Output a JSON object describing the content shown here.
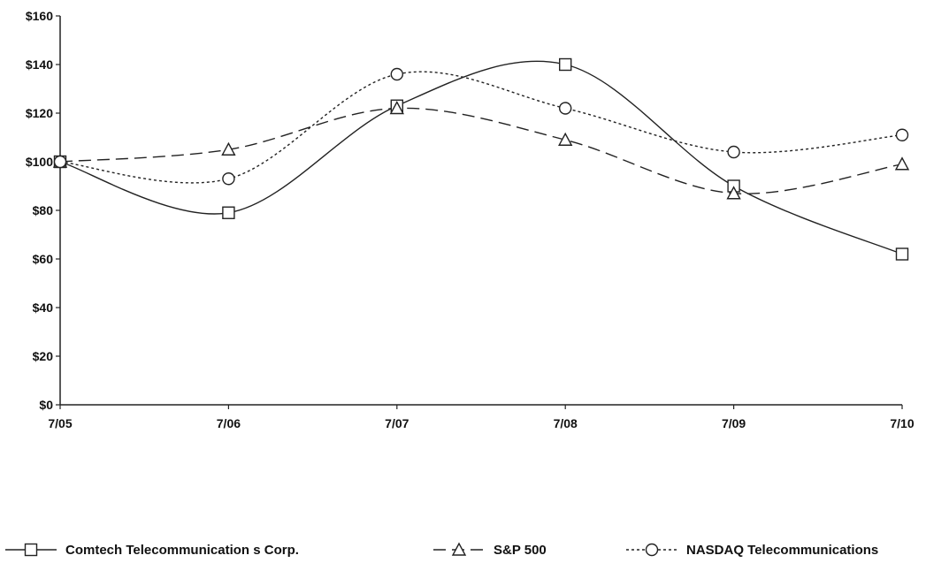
{
  "chart_data": {
    "type": "line",
    "categories": [
      "7/05",
      "7/06",
      "7/07",
      "7/08",
      "7/09",
      "7/10"
    ],
    "series": [
      {
        "name": "Comtech Telecommunication s Corp.",
        "marker": "square",
        "dash": "solid",
        "values": [
          100,
          79,
          123,
          140,
          90,
          62
        ]
      },
      {
        "name": "S&P 500",
        "marker": "triangle",
        "dash": "dashed",
        "values": [
          100,
          105,
          122,
          109,
          87,
          99
        ]
      },
      {
        "name": "NASDAQ Telecommunications",
        "marker": "circle",
        "dash": "dotted",
        "values": [
          100,
          93,
          136,
          122,
          104,
          111
        ]
      }
    ],
    "y_ticks": [
      "$0",
      "$20",
      "$40",
      "$60",
      "$80",
      "$100",
      "$120",
      "$140",
      "$160"
    ],
    "ylim": [
      0,
      160
    ],
    "grid": false,
    "legend_position": "bottom",
    "line_color": "#222222"
  }
}
